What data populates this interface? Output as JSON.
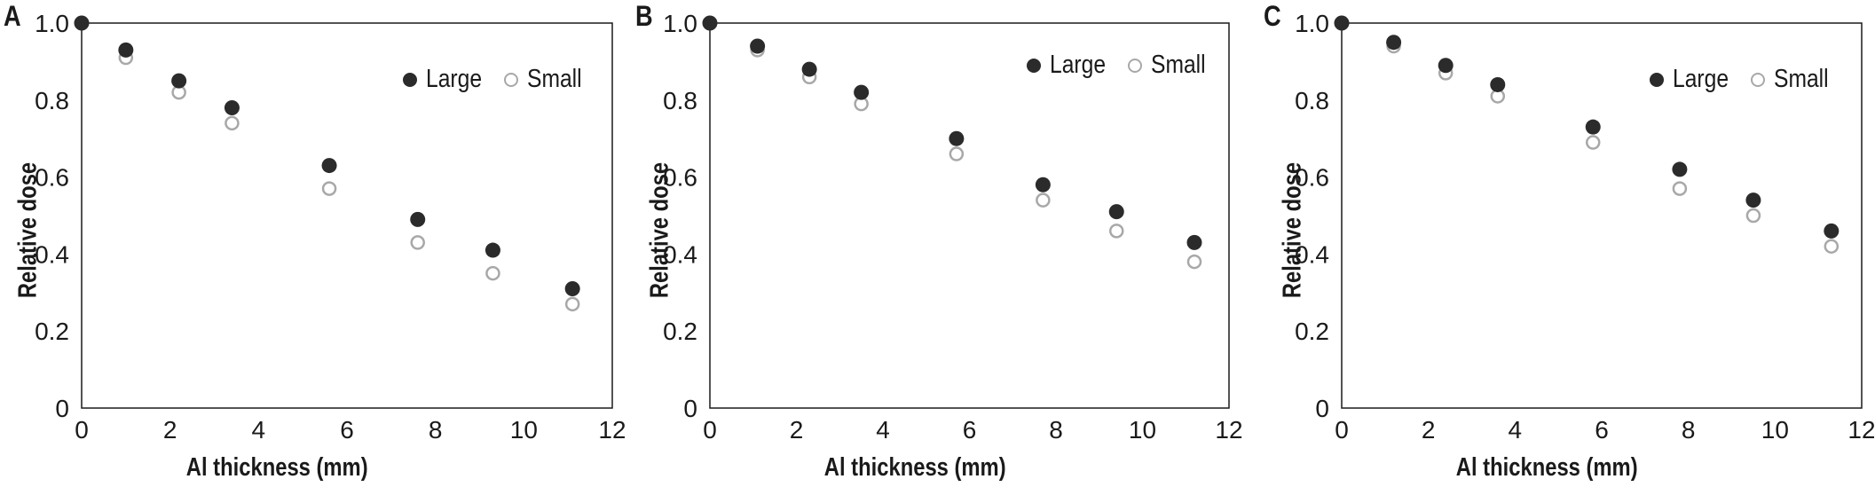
{
  "chart_data": [
    {
      "type": "scatter",
      "panel_label": "A",
      "xlabel": "Al thickness (mm)",
      "ylabel": "Relative dose",
      "xlim": [
        0,
        12
      ],
      "ylim": [
        0,
        1.0
      ],
      "xticks": [
        "0",
        "2",
        "4",
        "6",
        "8",
        "10",
        "12"
      ],
      "yticks": [
        "0",
        "0.2",
        "0.4",
        "0.6",
        "0.8",
        "1.0"
      ],
      "legend_position": "top-right",
      "grid": false,
      "series": [
        {
          "name": "Large",
          "marker": "filled",
          "x": [
            0,
            1.0,
            2.2,
            3.4,
            5.6,
            7.6,
            9.3,
            11.1
          ],
          "y": [
            1.0,
            0.93,
            0.85,
            0.78,
            0.63,
            0.49,
            0.41,
            0.31
          ]
        },
        {
          "name": "Small",
          "marker": "open",
          "x": [
            0,
            1.0,
            2.2,
            3.4,
            5.6,
            7.6,
            9.3,
            11.1
          ],
          "y": [
            1.0,
            0.91,
            0.82,
            0.74,
            0.57,
            0.43,
            0.35,
            0.27
          ]
        }
      ]
    },
    {
      "type": "scatter",
      "panel_label": "B",
      "xlabel": "Al thickness (mm)",
      "ylabel": "Relative dose",
      "xlim": [
        0,
        12
      ],
      "ylim": [
        0,
        1.0
      ],
      "xticks": [
        "0",
        "2",
        "4",
        "6",
        "8",
        "10",
        "12"
      ],
      "yticks": [
        "0",
        "0.2",
        "0.4",
        "0.6",
        "0.8",
        "1.0"
      ],
      "legend_position": "top-right",
      "grid": false,
      "series": [
        {
          "name": "Large",
          "marker": "filled",
          "x": [
            0,
            1.1,
            2.3,
            3.5,
            5.7,
            7.7,
            9.4,
            11.2
          ],
          "y": [
            1.0,
            0.94,
            0.88,
            0.82,
            0.7,
            0.58,
            0.51,
            0.43
          ]
        },
        {
          "name": "Small",
          "marker": "open",
          "x": [
            0,
            1.1,
            2.3,
            3.5,
            5.7,
            7.7,
            9.4,
            11.2
          ],
          "y": [
            1.0,
            0.93,
            0.86,
            0.79,
            0.66,
            0.54,
            0.46,
            0.38
          ]
        }
      ]
    },
    {
      "type": "scatter",
      "panel_label": "C",
      "xlabel": "Al thickness (mm)",
      "ylabel": "Relative dose",
      "xlim": [
        0,
        12
      ],
      "ylim": [
        0,
        1.0
      ],
      "xticks": [
        "0",
        "2",
        "4",
        "6",
        "8",
        "10",
        "12"
      ],
      "yticks": [
        "0",
        "0.2",
        "0.4",
        "0.6",
        "0.8",
        "1.0"
      ],
      "legend_position": "top-right",
      "grid": false,
      "series": [
        {
          "name": "Large",
          "marker": "filled",
          "x": [
            0,
            1.2,
            2.4,
            3.6,
            5.8,
            7.8,
            9.5,
            11.3
          ],
          "y": [
            1.0,
            0.95,
            0.89,
            0.84,
            0.73,
            0.62,
            0.54,
            0.46
          ]
        },
        {
          "name": "Small",
          "marker": "open",
          "x": [
            0,
            1.2,
            2.4,
            3.6,
            5.8,
            7.8,
            9.5,
            11.3
          ],
          "y": [
            1.0,
            0.94,
            0.87,
            0.81,
            0.69,
            0.57,
            0.5,
            0.42
          ]
        }
      ]
    }
  ],
  "colors": {
    "large": "#2b2b2b",
    "small_stroke": "#a8a8a8",
    "axis": "#1a1a1a"
  }
}
